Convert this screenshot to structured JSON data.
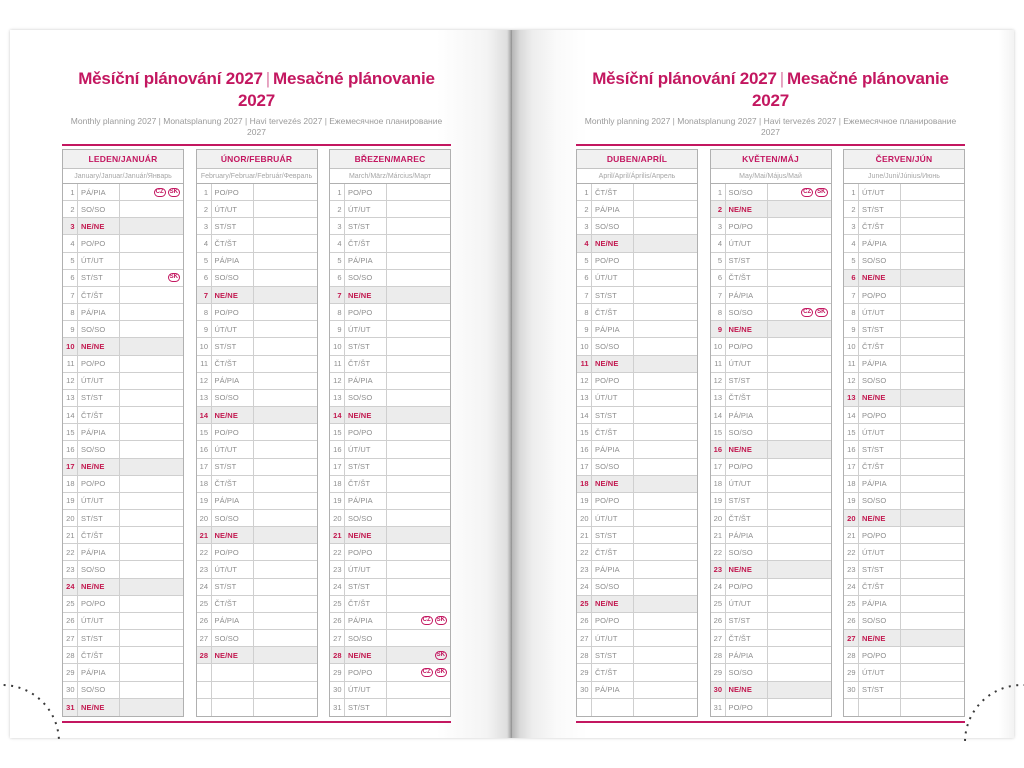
{
  "header": {
    "title_cz": "Měsíční plánování 2027",
    "title_divider": "|",
    "title_sk": "Mesačné plánovanie 2027",
    "subtitle": "Monthly planning 2027 | Monatsplanung 2027 | Havi tervezés 2027 | Ежемесячное планирование 2027"
  },
  "colors": {
    "accent": "#c31760",
    "accent_light": "#dd7fa9",
    "sunday_color": "#c2184f",
    "sunday_bg": "#ececec",
    "text_gray": "#8d8d8d"
  },
  "row_format": "[day_number, weekday_label, holiday_badges?]",
  "months": [
    {
      "name": "LEDEN/JANUÁR",
      "subtitle": "January/Januar/Január/Январь",
      "trailing_empty_rows": 0,
      "rows": [
        [
          1,
          "PÁ/PIA",
          [
            "CZ",
            "SK"
          ]
        ],
        [
          2,
          "SO/SO"
        ],
        [
          3,
          "NE/NE"
        ],
        [
          4,
          "PO/PO"
        ],
        [
          5,
          "ÚT/UT"
        ],
        [
          6,
          "ST/ST",
          [
            "SK"
          ]
        ],
        [
          7,
          "ČT/ŠT"
        ],
        [
          8,
          "PÁ/PIA"
        ],
        [
          9,
          "SO/SO"
        ],
        [
          10,
          "NE/NE"
        ],
        [
          11,
          "PO/PO"
        ],
        [
          12,
          "ÚT/UT"
        ],
        [
          13,
          "ST/ST"
        ],
        [
          14,
          "ČT/ŠT"
        ],
        [
          15,
          "PÁ/PIA"
        ],
        [
          16,
          "SO/SO"
        ],
        [
          17,
          "NE/NE"
        ],
        [
          18,
          "PO/PO"
        ],
        [
          19,
          "ÚT/UT"
        ],
        [
          20,
          "ST/ST"
        ],
        [
          21,
          "ČT/ŠT"
        ],
        [
          22,
          "PÁ/PIA"
        ],
        [
          23,
          "SO/SO"
        ],
        [
          24,
          "NE/NE"
        ],
        [
          25,
          "PO/PO"
        ],
        [
          26,
          "ÚT/UT"
        ],
        [
          27,
          "ST/ST"
        ],
        [
          28,
          "ČT/ŠT"
        ],
        [
          29,
          "PÁ/PIA"
        ],
        [
          30,
          "SO/SO"
        ],
        [
          31,
          "NE/NE"
        ]
      ]
    },
    {
      "name": "ÚNOR/FEBRUÁR",
      "subtitle": "February/Februar/Február/Февраль",
      "trailing_empty_rows": 3,
      "rows": [
        [
          1,
          "PO/PO"
        ],
        [
          2,
          "ÚT/UT"
        ],
        [
          3,
          "ST/ST"
        ],
        [
          4,
          "ČT/ŠT"
        ],
        [
          5,
          "PÁ/PIA"
        ],
        [
          6,
          "SO/SO"
        ],
        [
          7,
          "NE/NE"
        ],
        [
          8,
          "PO/PO"
        ],
        [
          9,
          "ÚT/UT"
        ],
        [
          10,
          "ST/ST"
        ],
        [
          11,
          "ČT/ŠT"
        ],
        [
          12,
          "PÁ/PIA"
        ],
        [
          13,
          "SO/SO"
        ],
        [
          14,
          "NE/NE"
        ],
        [
          15,
          "PO/PO"
        ],
        [
          16,
          "ÚT/UT"
        ],
        [
          17,
          "ST/ST"
        ],
        [
          18,
          "ČT/ŠT"
        ],
        [
          19,
          "PÁ/PIA"
        ],
        [
          20,
          "SO/SO"
        ],
        [
          21,
          "NE/NE"
        ],
        [
          22,
          "PO/PO"
        ],
        [
          23,
          "ÚT/UT"
        ],
        [
          24,
          "ST/ST"
        ],
        [
          25,
          "ČT/ŠT"
        ],
        [
          26,
          "PÁ/PIA"
        ],
        [
          27,
          "SO/SO"
        ],
        [
          28,
          "NE/NE"
        ]
      ]
    },
    {
      "name": "BŘEZEN/MAREC",
      "subtitle": "March/März/Március/Март",
      "trailing_empty_rows": 0,
      "rows": [
        [
          1,
          "PO/PO"
        ],
        [
          2,
          "ÚT/UT"
        ],
        [
          3,
          "ST/ST"
        ],
        [
          4,
          "ČT/ŠT"
        ],
        [
          5,
          "PÁ/PIA"
        ],
        [
          6,
          "SO/SO"
        ],
        [
          7,
          "NE/NE"
        ],
        [
          8,
          "PO/PO"
        ],
        [
          9,
          "ÚT/UT"
        ],
        [
          10,
          "ST/ST"
        ],
        [
          11,
          "ČT/ŠT"
        ],
        [
          12,
          "PÁ/PIA"
        ],
        [
          13,
          "SO/SO"
        ],
        [
          14,
          "NE/NE"
        ],
        [
          15,
          "PO/PO"
        ],
        [
          16,
          "ÚT/UT"
        ],
        [
          17,
          "ST/ST"
        ],
        [
          18,
          "ČT/ŠT"
        ],
        [
          19,
          "PÁ/PIA"
        ],
        [
          20,
          "SO/SO"
        ],
        [
          21,
          "NE/NE"
        ],
        [
          22,
          "PO/PO"
        ],
        [
          23,
          "ÚT/UT"
        ],
        [
          24,
          "ST/ST"
        ],
        [
          25,
          "ČT/ŠT"
        ],
        [
          26,
          "PÁ/PIA",
          [
            "CZ",
            "SK"
          ]
        ],
        [
          27,
          "SO/SO"
        ],
        [
          28,
          "NE/NE",
          [
            "SK"
          ]
        ],
        [
          29,
          "PO/PO",
          [
            "CZ",
            "SK"
          ]
        ],
        [
          30,
          "ÚT/UT"
        ],
        [
          31,
          "ST/ST"
        ]
      ]
    },
    {
      "name": "DUBEN/APRÍL",
      "subtitle": "April/April/Április/Апрель",
      "trailing_empty_rows": 1,
      "rows": [
        [
          1,
          "ČT/ŠT"
        ],
        [
          2,
          "PÁ/PIA"
        ],
        [
          3,
          "SO/SO"
        ],
        [
          4,
          "NE/NE"
        ],
        [
          5,
          "PO/PO"
        ],
        [
          6,
          "ÚT/UT"
        ],
        [
          7,
          "ST/ST"
        ],
        [
          8,
          "ČT/ŠT"
        ],
        [
          9,
          "PÁ/PIA"
        ],
        [
          10,
          "SO/SO"
        ],
        [
          11,
          "NE/NE"
        ],
        [
          12,
          "PO/PO"
        ],
        [
          13,
          "ÚT/UT"
        ],
        [
          14,
          "ST/ST"
        ],
        [
          15,
          "ČT/ŠT"
        ],
        [
          16,
          "PÁ/PIA"
        ],
        [
          17,
          "SO/SO"
        ],
        [
          18,
          "NE/NE"
        ],
        [
          19,
          "PO/PO"
        ],
        [
          20,
          "ÚT/UT"
        ],
        [
          21,
          "ST/ST"
        ],
        [
          22,
          "ČT/ŠT"
        ],
        [
          23,
          "PÁ/PIA"
        ],
        [
          24,
          "SO/SO"
        ],
        [
          25,
          "NE/NE"
        ],
        [
          26,
          "PO/PO"
        ],
        [
          27,
          "ÚT/UT"
        ],
        [
          28,
          "ST/ST"
        ],
        [
          29,
          "ČT/ŠT"
        ],
        [
          30,
          "PÁ/PIA"
        ]
      ]
    },
    {
      "name": "KVĚTEN/MÁJ",
      "subtitle": "May/Mai/Május/Май",
      "trailing_empty_rows": 0,
      "rows": [
        [
          1,
          "SO/SO",
          [
            "CZ",
            "SK"
          ]
        ],
        [
          2,
          "NE/NE"
        ],
        [
          3,
          "PO/PO"
        ],
        [
          4,
          "ÚT/UT"
        ],
        [
          5,
          "ST/ST"
        ],
        [
          6,
          "ČT/ŠT"
        ],
        [
          7,
          "PÁ/PIA"
        ],
        [
          8,
          "SO/SO",
          [
            "CZ",
            "SK"
          ]
        ],
        [
          9,
          "NE/NE"
        ],
        [
          10,
          "PO/PO"
        ],
        [
          11,
          "ÚT/UT"
        ],
        [
          12,
          "ST/ST"
        ],
        [
          13,
          "ČT/ŠT"
        ],
        [
          14,
          "PÁ/PIA"
        ],
        [
          15,
          "SO/SO"
        ],
        [
          16,
          "NE/NE"
        ],
        [
          17,
          "PO/PO"
        ],
        [
          18,
          "ÚT/UT"
        ],
        [
          19,
          "ST/ST"
        ],
        [
          20,
          "ČT/ŠT"
        ],
        [
          21,
          "PÁ/PIA"
        ],
        [
          22,
          "SO/SO"
        ],
        [
          23,
          "NE/NE"
        ],
        [
          24,
          "PO/PO"
        ],
        [
          25,
          "ÚT/UT"
        ],
        [
          26,
          "ST/ST"
        ],
        [
          27,
          "ČT/ŠT"
        ],
        [
          28,
          "PÁ/PIA"
        ],
        [
          29,
          "SO/SO"
        ],
        [
          30,
          "NE/NE"
        ],
        [
          31,
          "PO/PO"
        ]
      ]
    },
    {
      "name": "ČERVEN/JÚN",
      "subtitle": "June/Juni/Június/Июнь",
      "trailing_empty_rows": 1,
      "rows": [
        [
          1,
          "ÚT/UT"
        ],
        [
          2,
          "ST/ST"
        ],
        [
          3,
          "ČT/ŠT"
        ],
        [
          4,
          "PÁ/PIA"
        ],
        [
          5,
          "SO/SO"
        ],
        [
          6,
          "NE/NE"
        ],
        [
          7,
          "PO/PO"
        ],
        [
          8,
          "ÚT/UT"
        ],
        [
          9,
          "ST/ST"
        ],
        [
          10,
          "ČT/ŠT"
        ],
        [
          11,
          "PÁ/PIA"
        ],
        [
          12,
          "SO/SO"
        ],
        [
          13,
          "NE/NE"
        ],
        [
          14,
          "PO/PO"
        ],
        [
          15,
          "ÚT/UT"
        ],
        [
          16,
          "ST/ST"
        ],
        [
          17,
          "ČT/ŠT"
        ],
        [
          18,
          "PÁ/PIA"
        ],
        [
          19,
          "SO/SO"
        ],
        [
          20,
          "NE/NE"
        ],
        [
          21,
          "PO/PO"
        ],
        [
          22,
          "ÚT/UT"
        ],
        [
          23,
          "ST/ST"
        ],
        [
          24,
          "ČT/ŠT"
        ],
        [
          25,
          "PÁ/PIA"
        ],
        [
          26,
          "SO/SO"
        ],
        [
          27,
          "NE/NE"
        ],
        [
          28,
          "PO/PO"
        ],
        [
          29,
          "ÚT/UT"
        ],
        [
          30,
          "ST/ST"
        ]
      ]
    }
  ],
  "pages": [
    {
      "side": "left",
      "months": [
        0,
        1,
        2
      ]
    },
    {
      "side": "right",
      "months": [
        3,
        4,
        5
      ]
    }
  ]
}
